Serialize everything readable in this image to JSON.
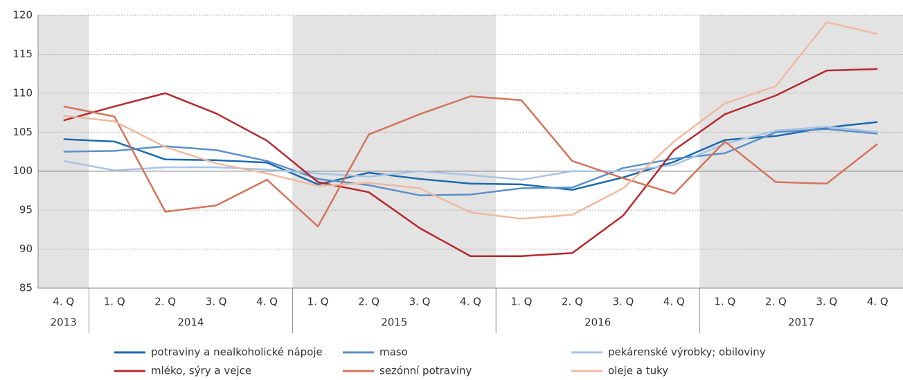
{
  "chart_data": {
    "type": "line",
    "categories": [
      "4. Q",
      "1. Q",
      "2. Q",
      "3. Q",
      "4. Q",
      "1. Q",
      "2. Q",
      "3. Q",
      "4. Q",
      "1. Q",
      "2. Q",
      "3. Q",
      "4. Q",
      "1. Q",
      "2. Q",
      "3. Q",
      "4. Q"
    ],
    "year_groups": [
      {
        "label": "2013",
        "count": 1,
        "shaded": true
      },
      {
        "label": "2014",
        "count": 4,
        "shaded": false
      },
      {
        "label": "2015",
        "count": 4,
        "shaded": true
      },
      {
        "label": "2016",
        "count": 4,
        "shaded": false
      },
      {
        "label": "2017",
        "count": 4,
        "shaded": true
      }
    ],
    "ylim": [
      85,
      120
    ],
    "yticks": [
      85,
      90,
      95,
      100,
      105,
      110,
      115,
      120
    ],
    "reference_line": 100,
    "grid": true,
    "series": [
      {
        "name": "potraviny a nealkoholické nápoje",
        "color": "#1a6aad",
        "values": [
          104.1,
          103.8,
          101.5,
          101.4,
          101.1,
          98.3,
          99.8,
          99.0,
          98.4,
          98.3,
          97.6,
          99.2,
          101.2,
          104.0,
          104.5,
          105.6,
          106.3
        ]
      },
      {
        "name": "maso",
        "color": "#5b8fc9",
        "values": [
          102.5,
          102.6,
          103.2,
          102.7,
          101.3,
          99.0,
          98.2,
          96.9,
          97.0,
          97.8,
          97.9,
          100.4,
          101.6,
          102.3,
          105.0,
          105.4,
          104.8
        ]
      },
      {
        "name": "pekárenské výrobky; obiloviny",
        "color": "#a8c4e4",
        "values": [
          101.3,
          100.1,
          100.5,
          100.5,
          100.2,
          99.7,
          99.3,
          100.0,
          99.5,
          98.9,
          100.0,
          100.0,
          100.8,
          103.5,
          105.2,
          105.7,
          105.0
        ]
      },
      {
        "name": "mléko, sýry a vejce",
        "color": "#b5282e",
        "values": [
          106.5,
          108.3,
          110.0,
          107.4,
          103.9,
          98.6,
          97.3,
          92.7,
          89.1,
          89.1,
          89.5,
          94.3,
          102.7,
          107.3,
          109.7,
          112.9,
          113.1
        ]
      },
      {
        "name": "sezónní potraviny",
        "color": "#d4735a",
        "values": [
          108.3,
          107.0,
          94.8,
          95.6,
          98.9,
          92.9,
          104.7,
          107.3,
          109.6,
          109.1,
          101.3,
          99.1,
          97.1,
          103.8,
          98.6,
          98.4,
          103.5
        ]
      },
      {
        "name": "oleje a tuky",
        "color": "#f0b8a0",
        "values": [
          107.1,
          106.4,
          103.1,
          101.0,
          99.7,
          98.1,
          98.5,
          97.8,
          94.7,
          93.9,
          94.4,
          97.8,
          103.8,
          108.7,
          110.9,
          119.1,
          117.6
        ]
      }
    ]
  }
}
